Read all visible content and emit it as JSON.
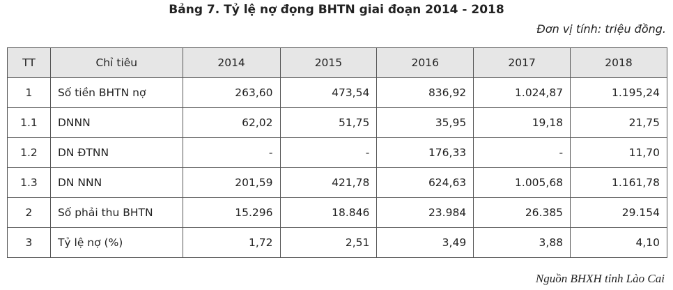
{
  "title": "Bảng 7. Tỷ lệ nợ đọng BHTN giai đoạn 2014 - 2018",
  "unit": "Đơn vị tính: triệu đồng.",
  "table": {
    "header": [
      "TT",
      "Chỉ tiêu",
      "2014",
      "2015",
      "2016",
      "2017",
      "2018"
    ],
    "rows": [
      [
        "1",
        "Số tiền BHTN nợ",
        "263,60",
        "473,54",
        "836,92",
        "1.024,87",
        "1.195,24"
      ],
      [
        "1.1",
        "DNNN",
        "62,02",
        "51,75",
        "35,95",
        "19,18",
        "21,75"
      ],
      [
        "1.2",
        "DN ĐTNN",
        "-",
        "-",
        "176,33",
        "-",
        "11,70"
      ],
      [
        "1.3",
        "DN NNN",
        "201,59",
        "421,78",
        "624,63",
        "1.005,68",
        "1.161,78"
      ],
      [
        "2",
        "Số phải thu BHTN",
        "15.296",
        "18.846",
        "23.984",
        "26.385",
        "29.154"
      ],
      [
        "3",
        "Tỷ lệ nợ (%)",
        "1,72",
        "2,51",
        "3,49",
        "3,88",
        "4,10"
      ]
    ]
  },
  "source": "Nguồn BHXH tỉnh Lào Cai"
}
